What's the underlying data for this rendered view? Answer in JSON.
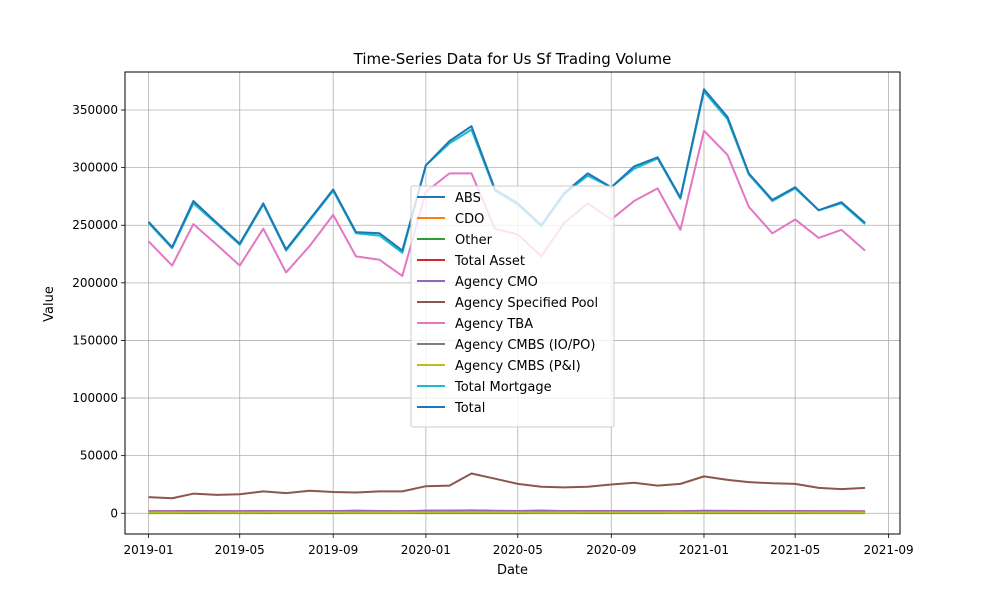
{
  "chart_data": {
    "type": "line",
    "title": "Time-Series Data for Us Sf Trading Volume",
    "xlabel": "Date",
    "ylabel": "Value",
    "xlim": [
      "2018-12-01",
      "2021-09-16"
    ],
    "ylim": [
      -18000,
      383000
    ],
    "grid": true,
    "legend_position": "center",
    "x_ticks": [
      {
        "date": "2019-01-01",
        "label": "2019-01"
      },
      {
        "date": "2019-05-01",
        "label": "2019-05"
      },
      {
        "date": "2019-09-01",
        "label": "2019-09"
      },
      {
        "date": "2020-01-01",
        "label": "2020-01"
      },
      {
        "date": "2020-05-01",
        "label": "2020-05"
      },
      {
        "date": "2020-09-01",
        "label": "2020-09"
      },
      {
        "date": "2021-01-01",
        "label": "2021-01"
      },
      {
        "date": "2021-05-01",
        "label": "2021-05"
      },
      {
        "date": "2021-09-01",
        "label": "2021-09"
      }
    ],
    "y_ticks": [
      {
        "value": 0,
        "label": "0"
      },
      {
        "value": 50000,
        "label": "50000"
      },
      {
        "value": 100000,
        "label": "100000"
      },
      {
        "value": 150000,
        "label": "150000"
      },
      {
        "value": 200000,
        "label": "200000"
      },
      {
        "value": 250000,
        "label": "250000"
      },
      {
        "value": 300000,
        "label": "300000"
      },
      {
        "value": 350000,
        "label": "350000"
      }
    ],
    "x": [
      "2019-01-01",
      "2019-02-01",
      "2019-03-01",
      "2019-04-01",
      "2019-05-01",
      "2019-06-01",
      "2019-07-01",
      "2019-08-01",
      "2019-09-01",
      "2019-10-01",
      "2019-11-01",
      "2019-12-01",
      "2020-01-01",
      "2020-02-01",
      "2020-03-01",
      "2020-04-01",
      "2020-05-01",
      "2020-06-01",
      "2020-07-01",
      "2020-08-01",
      "2020-09-01",
      "2020-10-01",
      "2020-11-01",
      "2020-12-01",
      "2021-01-01",
      "2021-02-01",
      "2021-03-01",
      "2021-04-01",
      "2021-05-01",
      "2021-06-01",
      "2021-07-01",
      "2021-08-01"
    ],
    "series": [
      {
        "name": "ABS",
        "color": "#1f77b4",
        "values": [
          1500,
          1400,
          1700,
          1500,
          1400,
          1600,
          1400,
          1500,
          1600,
          1500,
          1500,
          1400,
          1700,
          1800,
          2000,
          1700,
          1600,
          1500,
          1500,
          1600,
          1600,
          1700,
          1600,
          1500,
          1800,
          1700,
          1600,
          1500,
          1600,
          1500,
          1500,
          1400
        ]
      },
      {
        "name": "CDO",
        "color": "#ff7f0e",
        "values": [
          200,
          200,
          250,
          200,
          200,
          220,
          200,
          200,
          220,
          200,
          200,
          200,
          250,
          250,
          300,
          250,
          200,
          200,
          200,
          220,
          220,
          230,
          220,
          200,
          250,
          240,
          230,
          220,
          230,
          220,
          220,
          200
        ]
      },
      {
        "name": "Other",
        "color": "#2ca02c",
        "values": [
          100,
          100,
          120,
          100,
          100,
          110,
          100,
          100,
          110,
          100,
          100,
          100,
          120,
          130,
          150,
          120,
          110,
          100,
          100,
          110,
          110,
          120,
          110,
          100,
          130,
          120,
          110,
          110,
          110,
          100,
          100,
          100
        ]
      },
      {
        "name": "Total Asset",
        "color": "#d62728",
        "values": [
          1800,
          1700,
          2000,
          1800,
          1700,
          1900,
          1700,
          1800,
          1900,
          1800,
          1800,
          1700,
          2100,
          2200,
          2500,
          2100,
          1900,
          1800,
          1800,
          1900,
          1900,
          2000,
          1900,
          1800,
          2200,
          2100,
          2000,
          1800,
          1900,
          1800,
          1800,
          1700
        ]
      },
      {
        "name": "Agency CMO",
        "color": "#9467bd",
        "values": [
          1800,
          1700,
          1900,
          1800,
          1700,
          1900,
          1700,
          1800,
          1900,
          2300,
          2000,
          1800,
          2300,
          2300,
          2400,
          2100,
          2000,
          2400,
          1900,
          1900,
          1900,
          2000,
          1900,
          1800,
          2000,
          1900,
          1800,
          1700,
          1800,
          1700,
          1800,
          1400
        ]
      },
      {
        "name": "Agency Specified Pool",
        "color": "#8c564b",
        "values": [
          14000,
          13000,
          17000,
          16000,
          16500,
          19000,
          17500,
          19500,
          18500,
          18000,
          19000,
          19000,
          23500,
          24000,
          34500,
          30000,
          25500,
          23000,
          22500,
          23000,
          25000,
          26500,
          24000,
          25500,
          32000,
          29000,
          27000,
          26000,
          25500,
          22000,
          21000,
          22000
        ]
      },
      {
        "name": "Agency TBA",
        "color": "#e377c2",
        "values": [
          236000,
          215000,
          251000,
          233000,
          215000,
          247000,
          209000,
          232000,
          259000,
          223000,
          220000,
          206000,
          279000,
          295000,
          295000,
          247000,
          242000,
          223000,
          252000,
          269000,
          255000,
          271000,
          282000,
          246000,
          332000,
          311000,
          266000,
          243000,
          255000,
          239000,
          246000,
          228000
        ]
      },
      {
        "name": "Agency CMBS (IO/PO)",
        "color": "#7f7f7f",
        "values": [
          500,
          450,
          550,
          500,
          450,
          520,
          450,
          500,
          520,
          480,
          480,
          450,
          560,
          580,
          650,
          550,
          520,
          480,
          500,
          520,
          520,
          540,
          530,
          500,
          600,
          580,
          550,
          520,
          530,
          500,
          500,
          480
        ]
      },
      {
        "name": "Agency CMBS (P&I)",
        "color": "#bcbd22",
        "values": [
          700,
          650,
          750,
          700,
          650,
          720,
          650,
          700,
          720,
          680,
          680,
          650,
          760,
          780,
          850,
          750,
          720,
          680,
          700,
          720,
          720,
          740,
          730,
          700,
          800,
          780,
          750,
          720,
          730,
          700,
          700,
          680
        ]
      },
      {
        "name": "Total Mortgage",
        "color": "#17becf",
        "values": [
          252000,
          230000,
          269000,
          251000,
          233000,
          268000,
          228000,
          254000,
          280000,
          243000,
          241000,
          226000,
          302000,
          321000,
          333000,
          280000,
          268000,
          249000,
          277000,
          293000,
          283000,
          299000,
          308000,
          273000,
          366000,
          342000,
          294000,
          271000,
          282000,
          263000,
          269000,
          251000
        ]
      },
      {
        "name": "Total",
        "color": "#1f77b4",
        "values": [
          253000,
          231000,
          271000,
          252000,
          234000,
          269000,
          229000,
          255000,
          281000,
          244000,
          243000,
          228000,
          302000,
          323000,
          336000,
          281000,
          269000,
          250000,
          278000,
          295000,
          283000,
          301000,
          309000,
          274000,
          368000,
          344000,
          295000,
          272000,
          283000,
          263000,
          270000,
          252000
        ]
      }
    ]
  }
}
